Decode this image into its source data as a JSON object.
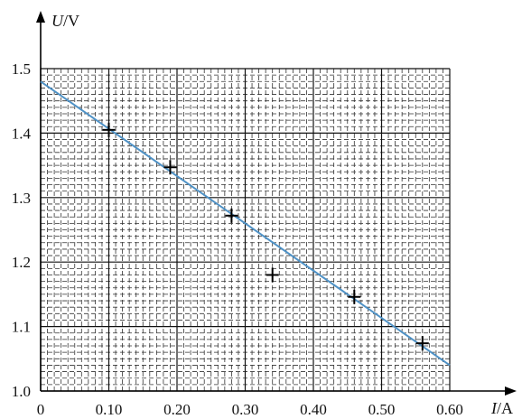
{
  "chart_data": {
    "type": "scatter",
    "x_axis": {
      "label_var": "I",
      "label_unit": "/A",
      "range": [
        0,
        0.6
      ],
      "ticks": [
        0,
        0.1,
        0.2,
        0.3,
        0.4,
        0.5,
        0.6
      ],
      "tick_labels": [
        "0",
        "0.10",
        "0.20",
        "0.30",
        "0.40",
        "0.50",
        "0.60"
      ]
    },
    "y_axis": {
      "label_var": "U",
      "label_unit": "/V",
      "range": [
        1.0,
        1.5
      ],
      "ticks": [
        1.0,
        1.1,
        1.2,
        1.3,
        1.4,
        1.5
      ],
      "tick_labels": [
        "1.0",
        "1.1",
        "1.2",
        "1.3",
        "1.4",
        "1.5"
      ]
    },
    "grid": true,
    "points": [
      {
        "x": 0.1,
        "y": 1.405
      },
      {
        "x": 0.19,
        "y": 1.347
      },
      {
        "x": 0.28,
        "y": 1.272
      },
      {
        "x": 0.34,
        "y": 1.18
      },
      {
        "x": 0.46,
        "y": 1.146
      },
      {
        "x": 0.56,
        "y": 1.074
      }
    ],
    "fit_line": {
      "x": [
        0,
        0.6
      ],
      "y": [
        1.48,
        1.04
      ]
    },
    "colors": {
      "line": "#4f92c6",
      "points": "#000000",
      "grid": "#333333"
    }
  }
}
